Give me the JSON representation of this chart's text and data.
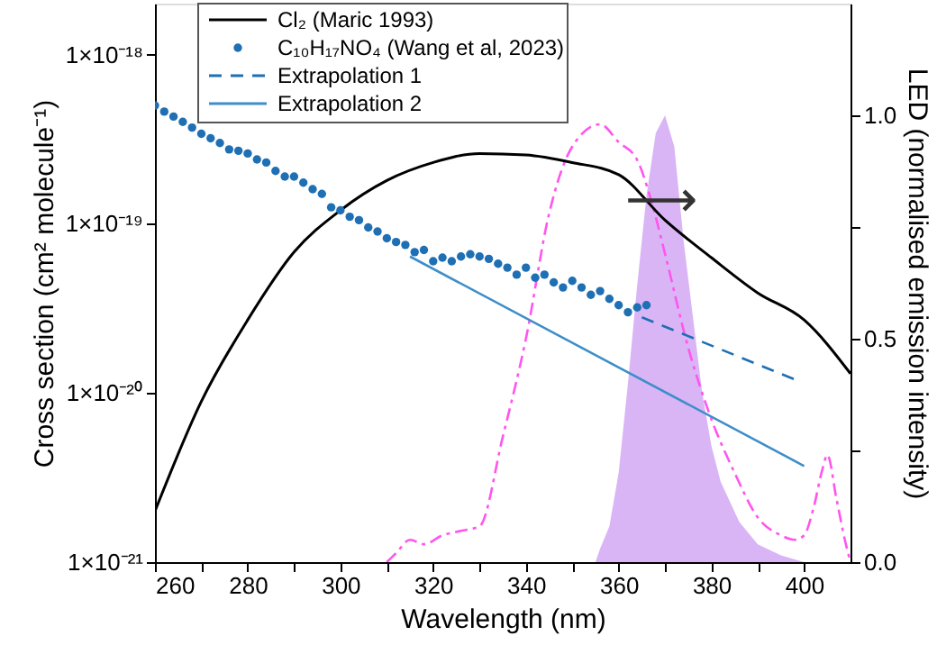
{
  "chart_data": {
    "type": "line",
    "xlabel": "Wavelength (nm)",
    "ylabel": "Cross section (cm² molecule⁻¹)",
    "y2label": "LED (normalised emission intensity)",
    "xlim": [
      260,
      410
    ],
    "xticks": [
      260,
      {
        "value": 270,
        "label": null
      },
      280,
      {
        "value": 290,
        "label": null
      },
      300,
      {
        "value": 310,
        "label": null
      },
      320,
      {
        "value": 330,
        "label": null
      },
      340,
      {
        "value": 350,
        "label": null
      },
      360,
      {
        "value": 370,
        "label": null
      },
      380,
      {
        "value": 390,
        "label": null
      },
      400
    ],
    "ylim": [
      1e-21,
      2e-18
    ],
    "yticks": [
      {
        "value": 1e-21,
        "label": "1×10⁻²¹"
      },
      {
        "value": 1e-20,
        "label": "1×10⁻²⁰"
      },
      {
        "value": 1e-19,
        "label": "1×10⁻¹⁹"
      },
      {
        "value": 1e-18,
        "label": "1×10⁻¹⁸"
      }
    ],
    "y2lim": [
      0,
      1.25
    ],
    "y2ticks": [
      {
        "value": 0,
        "label": "0.0"
      },
      {
        "value": 0.25,
        "label": null
      },
      {
        "value": 0.5,
        "label": "0.5"
      },
      {
        "value": 0.75,
        "label": null
      },
      {
        "value": 1,
        "label": "1.0"
      }
    ],
    "log": "y",
    "grid": false,
    "legend": "top left",
    "annotations": [
      "⟶"
    ],
    "series": [
      {
        "name": "Cl₂ (Maric 1993)",
        "color": "#000000",
        "line_style": "solid",
        "x": [
          260,
          270,
          280,
          290,
          300,
          310,
          320,
          330,
          340,
          350,
          360,
          370,
          380,
          390,
          400,
          410
        ],
        "values": [
          2e-21,
          8.9e-21,
          2.7e-20,
          6.8e-20,
          1.2e-19,
          1.8e-19,
          2.3e-19,
          2.6e-19,
          2.55e-19,
          2.3e-19,
          1.95e-19,
          1.05e-19,
          6.3e-20,
          3.9e-20,
          2.7e-20,
          1.3e-20
        ]
      },
      {
        "name": "C₁₀H₁₇NO₄ (Wang et al, 2023)",
        "type": "scatter",
        "color": "#1f6fb4",
        "marker": "circle",
        "x": [
          260,
          262,
          264,
          266,
          268,
          270,
          272,
          274,
          276,
          278,
          280,
          282,
          284,
          286,
          288,
          290,
          292,
          294,
          296,
          298,
          300,
          302,
          304,
          306,
          308,
          310,
          312,
          314,
          316,
          318,
          320,
          322,
          324,
          326,
          328,
          330,
          332,
          334,
          336,
          338,
          340,
          342,
          344,
          346,
          348,
          350,
          352,
          354,
          356,
          358,
          360,
          362,
          364,
          366
        ],
        "values": [
          5e-19,
          4.6e-19,
          4.3e-19,
          4e-19,
          3.7e-19,
          3.4e-19,
          3.2e-19,
          3e-19,
          2.75e-19,
          2.7e-19,
          2.6e-19,
          2.4e-19,
          2.3e-19,
          2.05e-19,
          1.9e-19,
          1.9e-19,
          1.75e-19,
          1.6e-19,
          1.5e-19,
          1.25e-19,
          1.2e-19,
          1.1e-19,
          1.05e-19,
          9.5e-20,
          9e-20,
          8.2e-20,
          7.8e-20,
          7.5e-20,
          6.8e-20,
          7e-20,
          6e-20,
          6.3e-20,
          6e-20,
          6.4e-20,
          6.6e-20,
          6.4e-20,
          6.2e-20,
          5.8e-20,
          5.5e-20,
          5e-20,
          5.5e-20,
          4.8e-20,
          5e-20,
          4.5e-20,
          4.2e-20,
          4.6e-20,
          4.2e-20,
          3.8e-20,
          4e-20,
          3.6e-20,
          3.3e-20,
          3e-20,
          3.2e-20,
          3.3e-20
        ]
      },
      {
        "name": "Extrapolation 1",
        "color": "#1f6fb4",
        "line_style": "dashed",
        "x": [
          365,
          398
        ],
        "values": [
          2.8e-20,
          1.2e-20
        ]
      },
      {
        "name": "Extrapolation 2",
        "color": "#3d8ec9",
        "line_style": "solid",
        "x": [
          315,
          400
        ],
        "values": [
          6.4e-20,
          3.7e-21
        ]
      },
      {
        "type": "line",
        "axis": "y2",
        "color": "#ff55ee",
        "line_style": "dashdot",
        "x": [
          310,
          312,
          315,
          318,
          322,
          326,
          330,
          335,
          340,
          345,
          350,
          356,
          360,
          364,
          367,
          370,
          375,
          380,
          385,
          390,
          395,
          398,
          400,
          402,
          404,
          405,
          407,
          409,
          410
        ],
        "values": [
          0.0,
          0.02,
          0.05,
          0.04,
          0.06,
          0.07,
          0.08,
          0.28,
          0.5,
          0.78,
          0.93,
          0.98,
          0.94,
          0.9,
          0.81,
          0.69,
          0.48,
          0.32,
          0.2,
          0.1,
          0.06,
          0.05,
          0.06,
          0.12,
          0.21,
          0.24,
          0.14,
          0.04,
          0.0
        ]
      },
      {
        "type": "area",
        "axis": "y2",
        "color": "#d2a8f5",
        "x": [
          355,
          356,
          358,
          360,
          362,
          364,
          366,
          368,
          370,
          372,
          374,
          376,
          378,
          380,
          382,
          386,
          390,
          395,
          400
        ],
        "values": [
          0.0,
          0.03,
          0.08,
          0.2,
          0.4,
          0.62,
          0.82,
          0.96,
          1.0,
          0.93,
          0.72,
          0.55,
          0.38,
          0.26,
          0.18,
          0.09,
          0.04,
          0.015,
          0.0
        ]
      }
    ]
  }
}
